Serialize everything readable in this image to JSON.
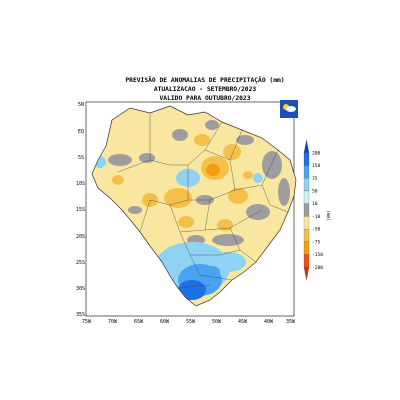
{
  "title": {
    "line1": "PREVISÃO DE ANOMALIAS DE PRECIPITAÇÃO (mm)",
    "line2": "ATUALIZACAO - SETEMBRO/2023",
    "line3": "VALIDO PARA OUTUBRO/2023"
  },
  "axes": {
    "lat_labels": [
      "5N",
      "EQ",
      "5S",
      "10S",
      "15S",
      "20S",
      "25S",
      "30S",
      "35S"
    ],
    "lon_labels": [
      "75W",
      "70W",
      "65W",
      "60W",
      "55W",
      "50W",
      "45W",
      "40W",
      "35W"
    ]
  },
  "colorbar": {
    "unit": "(mm)",
    "levels": [
      "200",
      "150",
      "75",
      "50",
      "10",
      "-10",
      "-50",
      "-75",
      "-150",
      "-200"
    ],
    "colors": [
      "#0b3bd6",
      "#1f6fe8",
      "#48a3f2",
      "#8fd3f4",
      "#cfeef8",
      "#9e9e9e",
      "#f9e79f",
      "#f5c04a",
      "#f39c12",
      "#e8551b",
      "#d0330b"
    ]
  },
  "logo": {
    "text": "INMET"
  }
}
